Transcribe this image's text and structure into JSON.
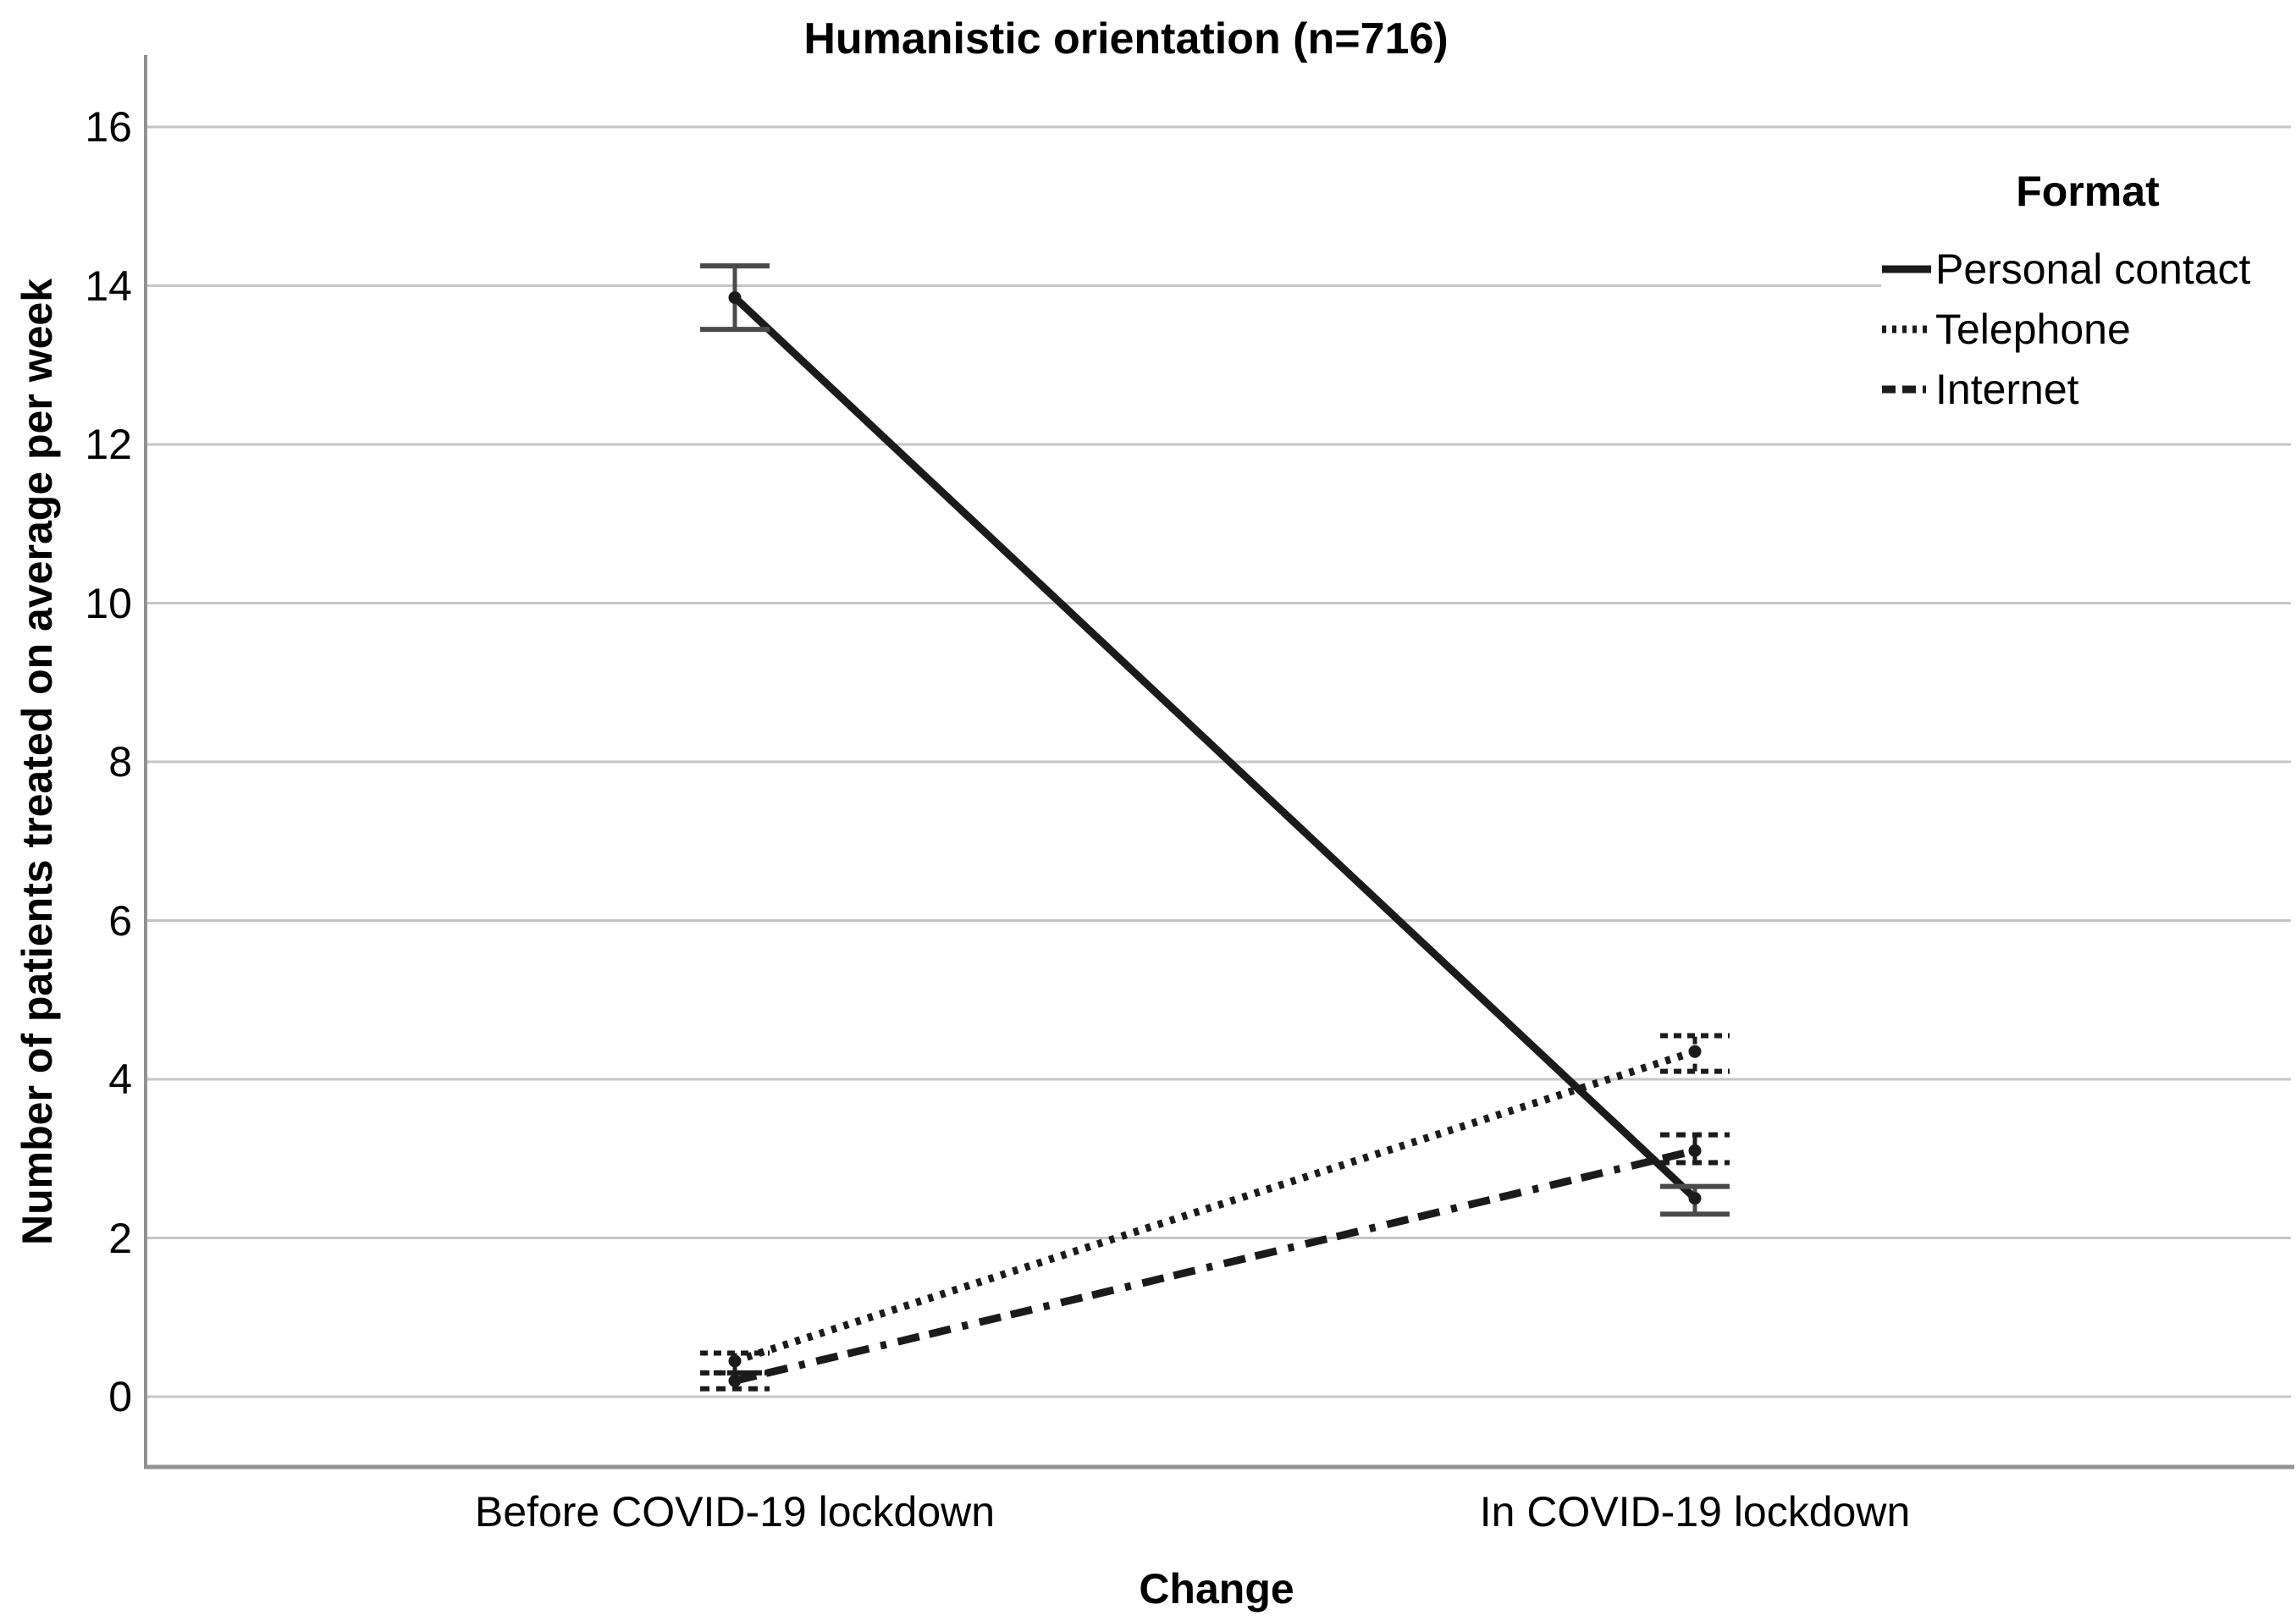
{
  "chart_data": {
    "type": "line",
    "title": "Humanistic orientation (n=716)",
    "xlabel": "Change",
    "ylabel": "Number of patients treated on average per week",
    "legend_title": "Format",
    "legend_position": "top-right",
    "grid": "horizontal-only",
    "categories": [
      "Before COVID-19 lockdown",
      "In COVID-19 lockdown"
    ],
    "yticks": [
      0,
      2,
      4,
      6,
      8,
      10,
      12,
      14,
      16
    ],
    "ylim": [
      -0.9,
      16.8
    ],
    "series": [
      {
        "name": "Personal contact",
        "line_style": "solid",
        "values": [
          13.85,
          2.5
        ],
        "ci_low": [
          13.45,
          2.3
        ],
        "ci_high": [
          14.25,
          2.65
        ]
      },
      {
        "name": "Telephone",
        "line_style": "dotted",
        "values": [
          0.45,
          4.35
        ],
        "ci_low": [
          0.3,
          4.1
        ],
        "ci_high": [
          0.55,
          4.55
        ]
      },
      {
        "name": "Internet",
        "line_style": "dash-dot",
        "values": [
          0.2,
          3.1
        ],
        "ci_low": [
          0.1,
          2.95
        ],
        "ci_high": [
          0.3,
          3.3
        ]
      }
    ],
    "colors": {
      "line": "#1b1b1b",
      "marker": "#1b1b1b",
      "grid": "#c6c6c6",
      "axis": "#929292",
      "error_bar_solid": "#4a4a4a",
      "error_bar_dashed": "#1b1b1b",
      "text": "#000000",
      "background": "#ffffff"
    }
  }
}
